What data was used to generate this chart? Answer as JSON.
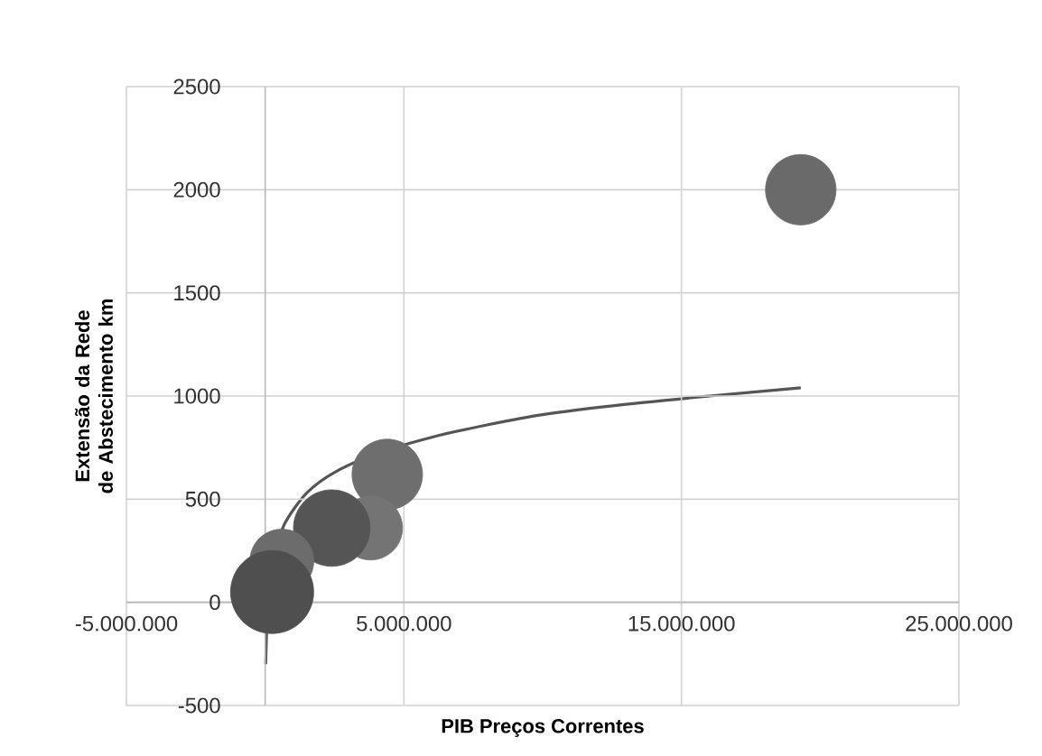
{
  "chart_data": {
    "type": "bubble",
    "xlabel": "PIB Preços Correntes",
    "ylabel": "Extensão da Rede de Abstecimento km",
    "xlim": [
      -5000000,
      25000000
    ],
    "xticks": [
      {
        "value": -5000000,
        "label": "-5.000.000"
      },
      {
        "value": 5000000,
        "label": "5.000.000"
      },
      {
        "value": 15000000,
        "label": "15.000.000"
      },
      {
        "value": 25000000,
        "label": "25.000.000"
      }
    ],
    "ylim": [
      -500,
      2500
    ],
    "yticks": [
      -500,
      {
        "value": 0,
        "label": "0"
      },
      500,
      1000,
      1500,
      2000,
      2500
    ],
    "grid": true,
    "series": [
      {
        "x": [
          19300000,
          4400000,
          3800000,
          2400000,
          600000,
          250000
        ],
        "values": [
          2000,
          620,
          360,
          360,
          200,
          50
        ],
        "sizes": [
          0.72,
          0.72,
          0.59,
          0.85,
          0.59,
          1
        ],
        "colors": [
          "#6a6a6a",
          "#6e6e6e",
          "#747474",
          "#555555",
          "#6c6c6c",
          "#4f4f4f"
        ]
      },
      {
        "type": "line",
        "color": "#555555",
        "x": [
          20000,
          100000,
          300000,
          700000,
          1500000,
          2500000,
          4000000,
          6000000,
          8000000,
          10000000,
          13000000,
          16000000,
          19300000
        ],
        "values": [
          -300,
          0,
          210,
          380,
          530,
          630,
          720,
          800,
          860,
          910,
          960,
          1000,
          1040
        ]
      }
    ]
  }
}
